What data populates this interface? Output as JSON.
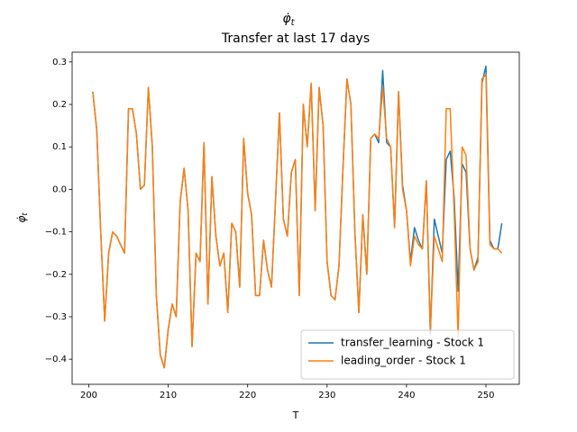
{
  "chart_data": {
    "type": "line",
    "title": {
      "symbol": "φ̇",
      "subscript": "t"
    },
    "subtitle": "Transfer at last 17 days",
    "xlabel": "T",
    "ylabel": {
      "symbol": "φ̇",
      "subscript": "t"
    },
    "x": [
      200.5,
      201,
      201.5,
      202,
      202.5,
      203,
      203.5,
      204,
      204.5,
      205,
      205.5,
      206,
      206.5,
      207,
      207.5,
      208,
      208.5,
      209,
      209.5,
      210,
      210.5,
      211,
      211.5,
      212,
      212.5,
      213,
      213.5,
      214,
      214.5,
      215,
      215.5,
      216,
      216.5,
      217,
      217.5,
      218,
      218.5,
      219,
      219.5,
      220,
      220.5,
      221,
      221.5,
      222,
      222.5,
      223,
      223.5,
      224,
      224.5,
      225,
      225.5,
      226,
      226.5,
      227,
      227.5,
      228,
      228.5,
      229,
      229.5,
      230,
      230.5,
      231,
      231.5,
      232,
      232.5,
      233,
      233.5,
      234,
      234.5,
      235,
      235.5,
      236,
      236.5,
      237,
      237.5,
      238,
      238.5,
      239,
      239.5,
      240,
      240.5,
      241,
      241.5,
      242,
      242.5,
      243,
      243.5,
      244,
      244.5,
      245,
      245.5,
      246,
      246.5,
      247,
      247.5,
      248,
      248.5,
      249,
      249.5,
      250,
      250.5,
      251,
      251.5,
      252
    ],
    "series": [
      {
        "name": "transfer_learning - Stock 1",
        "color": "#1f77b4",
        "values": [
          0.23,
          0.14,
          -0.1,
          -0.31,
          -0.15,
          -0.1,
          -0.11,
          -0.13,
          -0.15,
          0.19,
          0.19,
          0.13,
          0.0,
          0.01,
          0.24,
          0.1,
          -0.25,
          -0.39,
          -0.42,
          -0.33,
          -0.27,
          -0.3,
          -0.03,
          0.05,
          -0.05,
          -0.37,
          -0.15,
          -0.17,
          0.11,
          -0.27,
          0.03,
          -0.11,
          -0.18,
          -0.15,
          -0.29,
          -0.08,
          -0.1,
          -0.23,
          0.12,
          -0.01,
          -0.06,
          -0.25,
          -0.25,
          -0.12,
          -0.19,
          -0.23,
          -0.03,
          0.18,
          -0.07,
          -0.11,
          0.04,
          0.07,
          -0.25,
          0.2,
          0.1,
          0.25,
          -0.05,
          0.24,
          0.15,
          -0.17,
          -0.25,
          -0.26,
          -0.18,
          0.05,
          0.26,
          0.2,
          -0.1,
          -0.29,
          -0.06,
          -0.2,
          0.12,
          0.13,
          0.11,
          0.28,
          0.11,
          0.1,
          -0.09,
          0.23,
          0.01,
          -0.05,
          -0.17,
          -0.09,
          -0.12,
          -0.14,
          0.02,
          -0.34,
          -0.07,
          -0.11,
          -0.15,
          0.07,
          0.09,
          -0.02,
          -0.24,
          0.06,
          0.04,
          -0.14,
          -0.19,
          -0.16,
          0.25,
          0.29,
          -0.12,
          -0.14,
          -0.14,
          -0.08
        ]
      },
      {
        "name": "leading_order - Stock 1",
        "color": "#ff7f0e",
        "values": [
          0.23,
          0.14,
          -0.1,
          -0.31,
          -0.15,
          -0.1,
          -0.11,
          -0.13,
          -0.15,
          0.19,
          0.19,
          0.13,
          0.0,
          0.01,
          0.24,
          0.1,
          -0.25,
          -0.39,
          -0.42,
          -0.33,
          -0.27,
          -0.3,
          -0.03,
          0.05,
          -0.05,
          -0.37,
          -0.15,
          -0.17,
          0.11,
          -0.27,
          0.03,
          -0.11,
          -0.18,
          -0.15,
          -0.29,
          -0.08,
          -0.1,
          -0.23,
          0.12,
          -0.01,
          -0.06,
          -0.25,
          -0.25,
          -0.12,
          -0.19,
          -0.23,
          -0.03,
          0.18,
          -0.07,
          -0.11,
          0.04,
          0.07,
          -0.25,
          0.2,
          0.1,
          0.25,
          -0.05,
          0.24,
          0.15,
          -0.17,
          -0.25,
          -0.26,
          -0.18,
          0.05,
          0.26,
          0.2,
          -0.1,
          -0.29,
          -0.06,
          -0.2,
          0.12,
          0.13,
          0.12,
          0.24,
          0.12,
          0.1,
          -0.09,
          0.23,
          0.0,
          -0.05,
          -0.18,
          -0.11,
          -0.13,
          -0.14,
          0.02,
          -0.33,
          -0.11,
          -0.14,
          -0.17,
          0.19,
          0.19,
          -0.05,
          -0.35,
          0.1,
          0.08,
          -0.14,
          -0.19,
          -0.17,
          0.26,
          0.27,
          -0.13,
          -0.14,
          -0.14,
          -0.15
        ]
      }
    ],
    "xlim": [
      197.9,
      254.2
    ],
    "ylim": [
      -0.459,
      0.323
    ],
    "xticks": [
      200,
      210,
      220,
      230,
      240,
      250
    ],
    "yticks": [
      {
        "value": -0.4,
        "label": "−0.4"
      },
      {
        "value": -0.3,
        "label": "−0.3"
      },
      {
        "value": -0.2,
        "label": "−0.2"
      },
      {
        "value": -0.1,
        "label": "−0.1"
      },
      {
        "value": 0,
        "label": "0.0"
      },
      {
        "value": 0.1,
        "label": "0.1"
      },
      {
        "value": 0.2,
        "label": "0.2"
      },
      {
        "value": 0.3,
        "label": "0.3"
      }
    ],
    "legend": "lower right"
  }
}
